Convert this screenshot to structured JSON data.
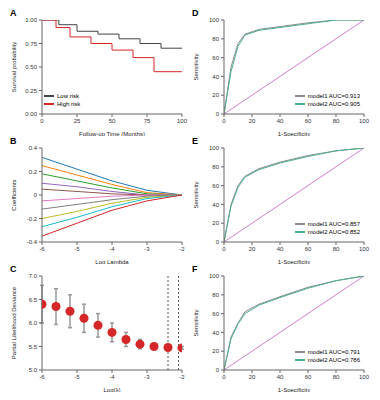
{
  "chart_data": [
    {
      "type": "line",
      "title": "A",
      "x_label": "Follow-up Time (Months)",
      "y_label": "Survival probability",
      "xlim": [
        0,
        100
      ],
      "xticks": [
        0,
        25,
        50,
        75,
        100
      ],
      "ylim": [
        0,
        1
      ],
      "yticks": [
        {
          "value": 0,
          "label": "0.00"
        },
        {
          "value": 0.25,
          "label": "0.25"
        },
        {
          "value": 0.5,
          "label": "0.50"
        },
        {
          "value": 0.75,
          "label": "0.75"
        },
        {
          "value": 1,
          "label": "1.00"
        }
      ],
      "line_style": "step",
      "legend": "lower left",
      "series": [
        {
          "name": "Low risk",
          "color": "#444444",
          "x": [
            0,
            12,
            25,
            40,
            55,
            70,
            85,
            100
          ],
          "values": [
            1,
            0.95,
            0.88,
            0.85,
            0.8,
            0.75,
            0.7,
            0.7
          ]
        },
        {
          "name": "High risk",
          "color": "#d62728",
          "x": [
            0,
            10,
            20,
            35,
            50,
            65,
            80,
            100
          ],
          "values": [
            1,
            0.92,
            0.82,
            0.75,
            0.68,
            0.6,
            0.45,
            0.45
          ]
        }
      ]
    },
    {
      "type": "roc",
      "title": "D",
      "x_label": "1-Specificity",
      "y_label": "Sensitivity",
      "xlim": [
        0,
        100
      ],
      "xticks": [
        0,
        20,
        40,
        60,
        80,
        100
      ],
      "ylim": [
        0,
        100
      ],
      "yticks": [
        0,
        20,
        40,
        60,
        80,
        100
      ],
      "legend": "lower right",
      "x": [
        0,
        5,
        10,
        15,
        25,
        40,
        60,
        80,
        100
      ],
      "series": [
        {
          "name": "model1 AUC=0.913",
          "color": "#8c8c8c",
          "values": [
            0,
            50,
            75,
            85,
            90,
            93,
            97,
            100,
            100
          ]
        },
        {
          "name": "model2 AUC=0.905",
          "color": "#4caf8a",
          "values": [
            0,
            45,
            72,
            84,
            89,
            92,
            96,
            100,
            100
          ]
        }
      ]
    },
    {
      "type": "line",
      "title": "B",
      "x_label": "Log Lambda",
      "y_label": "Coefficients",
      "xlim": [
        -6,
        -2
      ],
      "xticks": [
        -6,
        -5,
        -4,
        -3,
        -2
      ],
      "ylim": [
        -0.4,
        0.4
      ],
      "yticks": [
        -0.4,
        -0.2,
        0,
        0.2,
        0.4
      ],
      "x": [
        -6,
        -5,
        -4,
        -3,
        -2
      ],
      "series": [
        {
          "color": "#1f77b4",
          "values": [
            0.32,
            0.22,
            0.12,
            0.04,
            0
          ]
        },
        {
          "color": "#ff7f0e",
          "values": [
            0.25,
            0.17,
            0.09,
            0.02,
            0
          ]
        },
        {
          "color": "#2ca02c",
          "values": [
            0.18,
            0.12,
            0.06,
            0.01,
            0
          ]
        },
        {
          "color": "#9467bd",
          "values": [
            0.1,
            0.07,
            0.03,
            0,
            0
          ]
        },
        {
          "color": "#8c564b",
          "values": [
            0.05,
            0.03,
            0.01,
            0,
            0
          ]
        },
        {
          "color": "#e377c2",
          "values": [
            -0.05,
            -0.03,
            -0.01,
            0,
            0
          ]
        },
        {
          "color": "#7f7f7f",
          "values": [
            -0.12,
            -0.08,
            -0.04,
            -0.01,
            0
          ]
        },
        {
          "color": "#bcbd22",
          "values": [
            -0.2,
            -0.14,
            -0.07,
            -0.02,
            0
          ]
        },
        {
          "color": "#17becf",
          "values": [
            -0.27,
            -0.19,
            -0.1,
            -0.03,
            0
          ]
        },
        {
          "color": "#d62728",
          "values": [
            -0.35,
            -0.24,
            -0.13,
            -0.05,
            0
          ]
        }
      ]
    },
    {
      "type": "roc",
      "title": "E",
      "x_label": "1-Specificity",
      "y_label": "Sensitivity",
      "xlim": [
        0,
        100
      ],
      "xticks": [
        0,
        20,
        40,
        60,
        80,
        100
      ],
      "ylim": [
        0,
        100
      ],
      "yticks": [
        0,
        20,
        40,
        60,
        80,
        100
      ],
      "legend": "lower right",
      "x": [
        0,
        5,
        10,
        15,
        25,
        40,
        60,
        80,
        100
      ],
      "series": [
        {
          "name": "model1 AUC=0.857",
          "color": "#8c8c8c",
          "values": [
            0,
            40,
            60,
            70,
            78,
            85,
            92,
            97,
            100
          ]
        },
        {
          "name": "model2 AUC=0.852",
          "color": "#4caf8a",
          "values": [
            0,
            38,
            58,
            69,
            77,
            84,
            91,
            97,
            100
          ]
        }
      ]
    },
    {
      "type": "scatter",
      "title": "C",
      "x_label": "Log(λ)",
      "y_label": "Partial Likelihood Deviance",
      "xlim": [
        -6,
        -2
      ],
      "xticks": [
        -6,
        -5,
        -4,
        -3,
        -2
      ],
      "ylim": [
        5,
        7
      ],
      "yticks": [
        {
          "value": 5,
          "label": "5.0"
        },
        {
          "value": 5.5,
          "label": "5.5"
        },
        {
          "value": 6,
          "label": "6.0"
        },
        {
          "value": 6.5,
          "label": "6.5"
        },
        {
          "value": 7,
          "label": "7.0"
        }
      ],
      "color": "#d62728",
      "x": [
        -6,
        -5.6,
        -5.2,
        -4.8,
        -4.4,
        -4,
        -3.6,
        -3.2,
        -2.8,
        -2.4,
        -2
      ],
      "values": [
        6.4,
        6.35,
        6.25,
        6.1,
        5.95,
        5.8,
        5.65,
        5.55,
        5.5,
        5.48,
        5.47
      ],
      "errors": [
        0.4,
        0.38,
        0.35,
        0.3,
        0.25,
        0.2,
        0.15,
        0.1,
        0.06,
        0.04,
        0.03
      ],
      "vlines": [
        -2.4,
        -2.1
      ]
    },
    {
      "type": "roc",
      "title": "F",
      "x_label": "1-Specificity",
      "y_label": "Sensitivity",
      "xlim": [
        0,
        100
      ],
      "xticks": [
        0,
        20,
        40,
        60,
        80,
        100
      ],
      "ylim": [
        0,
        100
      ],
      "yticks": [
        0,
        20,
        40,
        60,
        80,
        100
      ],
      "legend": "lower right",
      "x": [
        0,
        5,
        10,
        15,
        25,
        40,
        60,
        80,
        100
      ],
      "series": [
        {
          "name": "model1 AUC=0.791",
          "color": "#8c8c8c",
          "values": [
            0,
            35,
            50,
            62,
            70,
            78,
            88,
            95,
            100
          ]
        },
        {
          "name": "model2 AUC=0.786",
          "color": "#4caf8a",
          "values": [
            0,
            33,
            49,
            60,
            69,
            77,
            87,
            95,
            100
          ]
        }
      ]
    }
  ]
}
